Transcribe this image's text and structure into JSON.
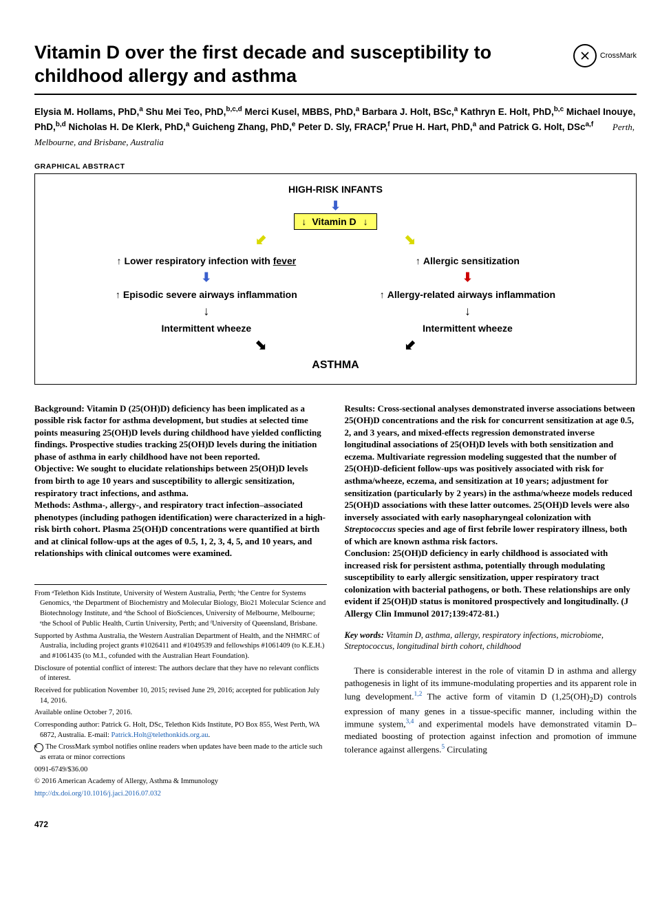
{
  "title": "Vitamin D over the first decade and susceptibility to childhood allergy and asthma",
  "crossmark": "CrossMark",
  "authors_html": "Elysia M. Hollams, PhD,<sup>a</sup> Shu Mei Teo, PhD,<sup>b,c,d</sup> Merci Kusel, MBBS, PhD,<sup>a</sup> Barbara J. Holt, BSc,<sup>a</sup> Kathryn E. Holt, PhD,<sup>b,c</sup> Michael Inouye, PhD,<sup>b,d</sup> Nicholas H. De Klerk, PhD,<sup>a</sup> Guicheng Zhang, PhD,<sup>e</sup> Peter D. Sly, FRACP,<sup>f</sup> Prue H. Hart, PhD,<sup>a</sup> and Patrick G. Holt, DSc<sup>a,f</sup>",
  "location": "Perth, Melbourne, and Brisbane, Australia",
  "ga": {
    "label": "GRAPHICAL ABSTRACT",
    "top": "HIGH-RISK INFANTS",
    "vitd": "Vitamin D",
    "left": [
      "Lower respiratory infection with ",
      "Episodic severe airways inflammation",
      "Intermittent wheeze"
    ],
    "left_under": "fever",
    "right": [
      "Allergic sensitization",
      "Allergy-related airways inflammation",
      "Intermittent wheeze"
    ],
    "bottom": "ASTHMA"
  },
  "abstract": {
    "background": "Background: Vitamin D (25(OH)D) deficiency has been implicated as a possible risk factor for asthma development, but studies at selected time points measuring 25(OH)D levels during childhood have yielded conflicting findings. Prospective studies tracking 25(OH)D levels during the initiation phase of asthma in early childhood have not been reported.",
    "objective": "Objective: We sought to elucidate relationships between 25(OH)D levels from birth to age 10 years and susceptibility to allergic sensitization, respiratory tract infections, and asthma.",
    "methods": "Methods: Asthma-, allergy-, and respiratory tract infection–associated phenotypes (including pathogen identification) were characterized in a high-risk birth cohort. Plasma 25(OH)D concentrations were quantified at birth and at clinical follow-ups at the ages of 0.5, 1, 2, 3, 4, 5, and 10 years, and relationships with clinical outcomes were examined.",
    "results": "Results: Cross-sectional analyses demonstrated inverse associations between 25(OH)D concentrations and the risk for concurrent sensitization at age 0.5, 2, and 3 years, and mixed-effects regression demonstrated inverse longitudinal associations of 25(OH)D levels with both sensitization and eczema. Multivariate regression modeling suggested that the number of 25(OH)D-deficient follow-ups was positively associated with risk for asthma/wheeze, eczema, and sensitization at 10 years; adjustment for sensitization (particularly by 2 years) in the asthma/wheeze models reduced 25(OH)D associations with these latter outcomes. 25(OH)D levels were also inversely associated with early nasopharyngeal colonization with Streptococcus species and age of first febrile lower respiratory illness, both of which are known asthma risk factors.",
    "conclusion": "Conclusion: 25(OH)D deficiency in early childhood is associated with increased risk for persistent asthma, potentially through modulating susceptibility to early allergic sensitization, upper respiratory tract colonization with bacterial pathogens, or both. These relationships are only evident if 25(OH)D status is monitored prospectively and longitudinally. (J Allergy Clin Immunol 2017;139:472-81.)"
  },
  "keywords": {
    "label": "Key words:",
    "text": " Vitamin D, asthma, allergy, respiratory infections, microbiome, Streptococcus, longitudinal birth cohort, childhood"
  },
  "intro": "There is considerable interest in the role of vitamin D in asthma and allergy pathogenesis in light of its immune-modulating properties and its apparent role in lung development.{1,2} The active form of vitamin D (1,25(OH)2D) controls expression of many genes in a tissue-specific manner, including within the immune system,{3,4} and experimental models have demonstrated vitamin D–mediated boosting of protection against infection and promotion of immune tolerance against allergens.{5} Circulating",
  "footnotes": {
    "from": "From ᵃTelethon Kids Institute, University of Western Australia, Perth; ᵇthe Centre for Systems Genomics, ᶜthe Department of Biochemistry and Molecular Biology, Bio21 Molecular Science and Biotechnology Institute, and ᵈthe School of BioSciences, University of Melbourne, Melbourne; ᵉthe School of Public Health, Curtin University, Perth; and ᶠUniversity of Queensland, Brisbane.",
    "supported": "Supported by Asthma Australia, the Western Australian Department of Health, and the NHMRC of Australia, including project grants #1026411 and #1049539 and fellowships #1061409 (to K.E.H.) and #1061435 (to M.I., cofunded with the Australian Heart Foundation).",
    "disclosure": "Disclosure of potential conflict of interest: The authors declare that they have no relevant conflicts of interest.",
    "received": "Received for publication November 10, 2015; revised June 29, 2016; accepted for publication July 14, 2016.",
    "available": "Available online October 7, 2016.",
    "corresponding": "Corresponding author: Patrick G. Holt, DSc, Telethon Kids Institute, PO Box 855, West Perth, WA 6872, Australia. E-mail: ",
    "email": "Patrick.Holt@telethonkids.org.au",
    "crossmark_note": "The CrossMark symbol notifies online readers when updates have been made to the article such as errata or minor corrections",
    "issn": "0091-6749/$36.00",
    "copyright": "© 2016 American Academy of Allergy, Asthma & Immunology",
    "doi": "http://dx.doi.org/10.1016/j.jaci.2016.07.032"
  },
  "pagenum": "472"
}
